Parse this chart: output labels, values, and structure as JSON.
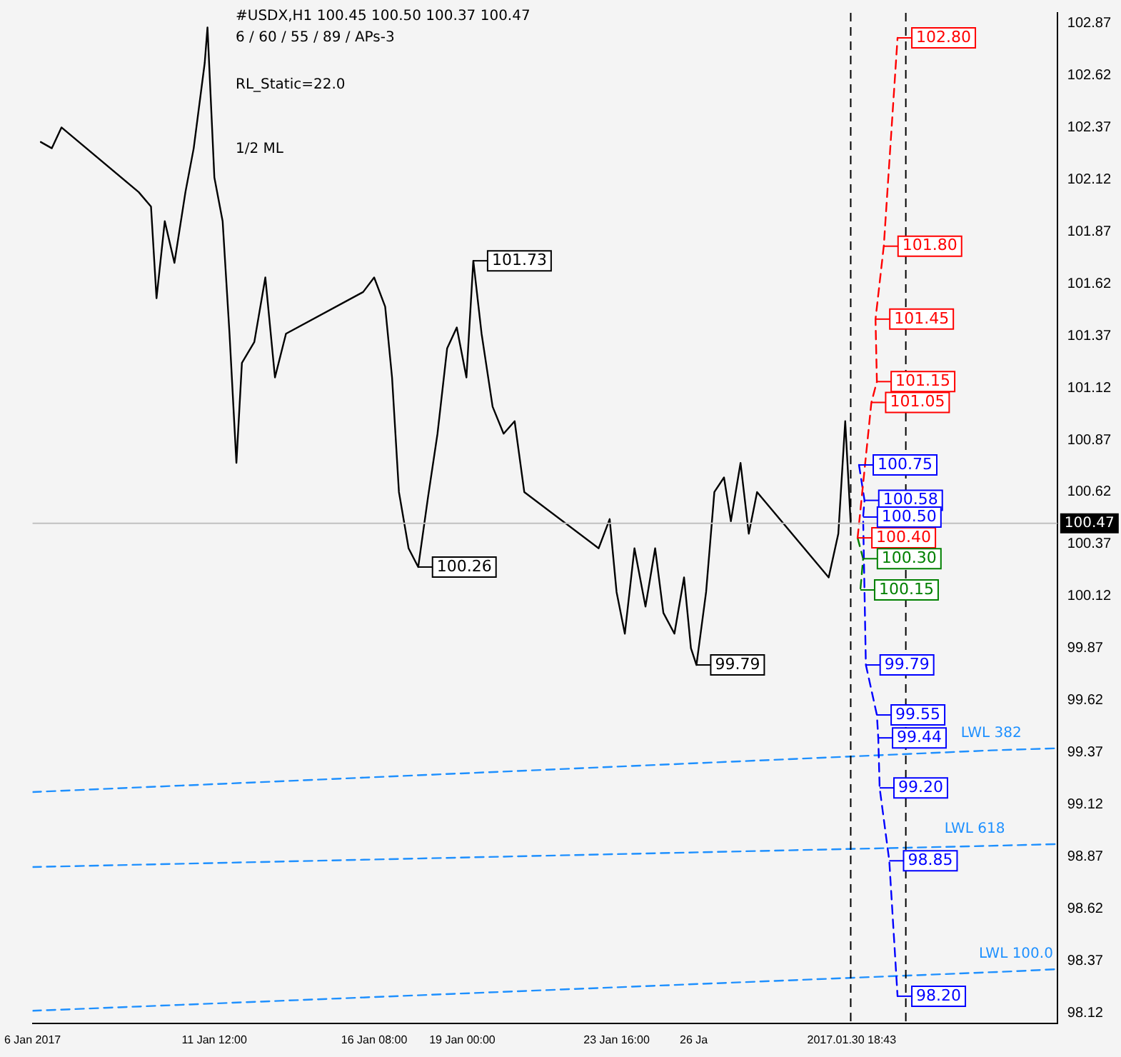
{
  "chart_data": {
    "type": "line",
    "title": "#USDX,H1  100.45 100.50 100.37 100.47",
    "subtitle": "6 / 60 / 55 / 89 / APs-3",
    "annotations": [
      "RL_Static=22.0",
      "1/2 ML"
    ],
    "xlim": [
      "2017-01-06T00:00",
      "2017-02-06T00:00"
    ],
    "xticks": [
      {
        "value": "2017-01-06",
        "label": "6 Jan 2017"
      },
      {
        "value": "2017-01-11T12:00",
        "label": "11 Jan 12:00"
      },
      {
        "value": "2017-01-16T08:00",
        "label": "16 Jan 08:00"
      },
      {
        "value": "2017-01-19T00:00",
        "label": "19 Jan 00:00"
      },
      {
        "value": "2017-01-23T16:00",
        "label": "23 Jan 16:00"
      },
      {
        "value": "2017-01-26",
        "label": "26 Ja"
      },
      {
        "value": "2017-01-30T18:43",
        "label": "2017.01.30 18:43"
      }
    ],
    "ylim": [
      98.07,
      102.92
    ],
    "yticks": [
      98.12,
      98.37,
      98.62,
      98.87,
      99.12,
      99.37,
      99.62,
      99.87,
      100.12,
      100.37,
      100.62,
      100.87,
      101.12,
      101.37,
      101.62,
      101.87,
      102.12,
      102.37,
      102.62,
      102.87
    ],
    "grid": false,
    "legend": false,
    "marker": "none",
    "ref_lines": [
      {
        "axis": "y",
        "value": 100.47,
        "label": "100.47",
        "color": "#c0c0c0"
      },
      {
        "axis": "x",
        "value": "2017-01-30T18:00",
        "color": "#000000",
        "line_style": "dashed"
      },
      {
        "axis": "x",
        "value": "2017-02-01T10:00",
        "color": "#000000",
        "line_style": "dashed"
      }
    ],
    "series": [
      {
        "type": "line",
        "color": "#000000",
        "line_style": "solid",
        "x": [
          "2017-01-06T06:00",
          "2017-01-06T14:00",
          "2017-01-06T21:00",
          "2017-01-09T05:00",
          "2017-01-09T14:00",
          "2017-01-09T18:00",
          "2017-01-10T00:00",
          "2017-01-10T07:00",
          "2017-01-10T15:00",
          "2017-01-10T21:00",
          "2017-01-11T05:00",
          "2017-01-11T07:00",
          "2017-01-11T12:00",
          "2017-01-11T18:00",
          "2017-01-11T23:00",
          "2017-01-12T04:00",
          "2017-01-12T08:00",
          "2017-01-12T17:00",
          "2017-01-13T01:00",
          "2017-01-13T08:00",
          "2017-01-13T16:00",
          "2017-01-16T00:00",
          "2017-01-16T08:00",
          "2017-01-16T16:00",
          "2017-01-16T21:00",
          "2017-01-17T02:00",
          "2017-01-17T09:00",
          "2017-01-17T16:00",
          "2017-01-17T23:00",
          "2017-01-18T06:00",
          "2017-01-18T13:00",
          "2017-01-18T20:00",
          "2017-01-19T03:00",
          "2017-01-19T08:00",
          "2017-01-19T14:00",
          "2017-01-19T22:00",
          "2017-01-20T06:00",
          "2017-01-20T14:00",
          "2017-01-20T21:00",
          "2017-01-23T03:00",
          "2017-01-23T11:00",
          "2017-01-23T16:00",
          "2017-01-23T22:00",
          "2017-01-24T05:00",
          "2017-01-24T13:00",
          "2017-01-24T20:00",
          "2017-01-25T02:00",
          "2017-01-25T10:00",
          "2017-01-25T17:00",
          "2017-01-25T22:00",
          "2017-01-26T02:00",
          "2017-01-26T09:00",
          "2017-01-26T15:00",
          "2017-01-26T22:00",
          "2017-01-27T03:00",
          "2017-01-27T10:00",
          "2017-01-27T16:00",
          "2017-01-27T22:00",
          "2017-01-30T02:00",
          "2017-01-30T09:00",
          "2017-01-30T14:00",
          "2017-01-30T18:00"
        ],
        "values": [
          102.3,
          102.27,
          102.37,
          102.06,
          101.99,
          101.55,
          101.92,
          101.72,
          102.06,
          102.27,
          102.68,
          102.85,
          102.13,
          101.92,
          101.38,
          100.76,
          101.24,
          101.34,
          101.65,
          101.17,
          101.38,
          101.58,
          101.65,
          101.51,
          101.17,
          100.62,
          100.35,
          100.26,
          100.59,
          100.9,
          101.31,
          101.41,
          101.17,
          101.73,
          101.38,
          101.03,
          100.9,
          100.96,
          100.62,
          100.35,
          100.49,
          100.14,
          99.94,
          100.35,
          100.07,
          100.35,
          100.04,
          99.94,
          100.21,
          99.87,
          99.79,
          100.14,
          100.62,
          100.69,
          100.48,
          100.76,
          100.42,
          100.62,
          100.21,
          100.42,
          100.96,
          100.47
        ],
        "value_labels": [
          null,
          null,
          null,
          null,
          null,
          null,
          null,
          null,
          null,
          null,
          null,
          null,
          null,
          null,
          null,
          null,
          null,
          null,
          null,
          null,
          null,
          null,
          null,
          null,
          null,
          null,
          null,
          "100.26",
          null,
          null,
          null,
          null,
          null,
          "101.73",
          null,
          null,
          null,
          null,
          null,
          null,
          null,
          null,
          null,
          null,
          null,
          null,
          null,
          null,
          null,
          null,
          "99.79",
          null,
          null,
          null,
          null,
          null,
          null,
          null,
          null,
          null,
          null,
          null
        ]
      },
      {
        "type": "line",
        "color": "#ff0000",
        "line_style": "dashed",
        "x": [
          "2017-01-30T23:00",
          "2017-01-31T09:00",
          "2017-01-31T13:00",
          "2017-01-31T12:00",
          "2017-01-31T18:00",
          "2017-02-01T04:00"
        ],
        "values": [
          100.4,
          101.05,
          101.15,
          101.45,
          101.8,
          102.8
        ],
        "value_labels": [
          "100.40",
          "101.05",
          "101.15",
          "101.45",
          "101.80",
          "102.80"
        ]
      },
      {
        "type": "line",
        "color": "#0000ff",
        "line_style": "dashed",
        "x": [
          "2017-01-31T00:00",
          "2017-01-31T04:00",
          "2017-01-31T03:00",
          "2017-01-31T05:00",
          "2017-01-31T13:00",
          "2017-01-31T14:00",
          "2017-01-31T15:00",
          "2017-01-31T22:00",
          "2017-02-01T04:00"
        ],
        "values": [
          100.75,
          100.58,
          100.5,
          99.79,
          99.55,
          99.44,
          99.2,
          98.85,
          98.2
        ],
        "value_labels": [
          "100.75",
          "100.58",
          "100.50",
          "99.79",
          "99.55",
          "99.44",
          "99.20",
          "98.85",
          "98.20"
        ]
      },
      {
        "type": "line",
        "color": "#008000",
        "line_style": "dashed",
        "x": [
          "2017-01-30T23:00",
          "2017-01-31T03:00",
          "2017-01-31T01:00"
        ],
        "values": [
          100.4,
          100.3,
          100.15
        ],
        "value_labels": [
          null,
          "100.30",
          "100.15"
        ]
      },
      {
        "type": "line",
        "name": "LWL 382",
        "color": "#1e90ff",
        "line_style": "dashed",
        "x": [
          "2017-01-06T00:00",
          "2017-02-04T00:00",
          "2017-02-06T00:00"
        ],
        "values": [
          99.18,
          99.38,
          99.39
        ]
      },
      {
        "type": "line",
        "name": "LWL 618",
        "color": "#1e90ff",
        "line_style": "dashed",
        "x": [
          "2017-01-06T00:00",
          "2017-02-03T12:00",
          "2017-02-06T00:00"
        ],
        "values": [
          98.82,
          98.92,
          98.93
        ]
      },
      {
        "type": "line",
        "name": "LWL 100.0",
        "color": "#1e90ff",
        "line_style": "dashed",
        "x": [
          "2017-01-06T00:00",
          "2017-02-04T18:00",
          "2017-02-06T00:00"
        ],
        "values": [
          98.13,
          98.32,
          98.33
        ]
      }
    ]
  }
}
